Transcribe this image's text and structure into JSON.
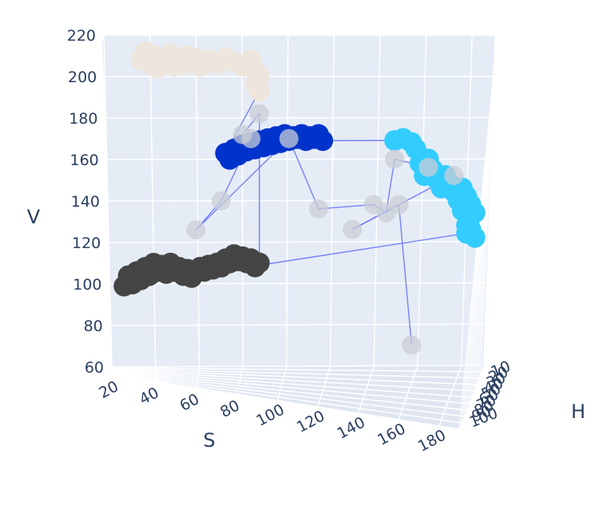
{
  "chart_data": {
    "type": "scatter3d",
    "axes": {
      "x": {
        "label": "S",
        "range": [
          20,
          190
        ],
        "ticks": [
          20,
          40,
          60,
          80,
          100,
          120,
          140,
          160,
          180
        ]
      },
      "y": {
        "label": "H",
        "range": [
          0,
          100
        ],
        "ticks": [
          10,
          20,
          30,
          40,
          50,
          60,
          70,
          80,
          90,
          100
        ]
      },
      "z": {
        "label": "V",
        "range": [
          60,
          220
        ],
        "ticks": [
          60,
          80,
          100,
          120,
          140,
          160,
          180,
          200,
          220
        ]
      }
    },
    "grid": true,
    "background": "#e5ecf6",
    "line_color": "#636efa",
    "clusters": [
      {
        "color": "#eee5dc",
        "points": [
          [
            30,
            208
          ],
          [
            32,
            212
          ],
          [
            34,
            206
          ],
          [
            36,
            210
          ],
          [
            38,
            204
          ],
          [
            40,
            209
          ],
          [
            42,
            207
          ],
          [
            44,
            211
          ],
          [
            46,
            205
          ],
          [
            48,
            208
          ],
          [
            50,
            206
          ],
          [
            52,
            210
          ],
          [
            54,
            207
          ],
          [
            56,
            209
          ],
          [
            58,
            205
          ],
          [
            62,
            208
          ],
          [
            66,
            206
          ],
          [
            70,
            209
          ],
          [
            74,
            207
          ],
          [
            78,
            205
          ],
          [
            82,
            208
          ],
          [
            84,
            203
          ],
          [
            86,
            200
          ],
          [
            84,
            196
          ],
          [
            86,
            193
          ]
        ]
      },
      {
        "color": "#0033cc",
        "points": [
          [
            70,
            163
          ],
          [
            72,
            160
          ],
          [
            74,
            165
          ],
          [
            76,
            162
          ],
          [
            78,
            167
          ],
          [
            80,
            164
          ],
          [
            82,
            168
          ],
          [
            84,
            165
          ],
          [
            86,
            169
          ],
          [
            88,
            166
          ],
          [
            90,
            170
          ],
          [
            92,
            167
          ],
          [
            94,
            171
          ],
          [
            96,
            168
          ],
          [
            98,
            172
          ],
          [
            100,
            169
          ],
          [
            102,
            171
          ],
          [
            104,
            170
          ],
          [
            106,
            172
          ],
          [
            108,
            169
          ],
          [
            110,
            171
          ],
          [
            112,
            170
          ],
          [
            114,
            172
          ],
          [
            116,
            169
          ]
        ]
      },
      {
        "color": "#33ccff",
        "points": [
          [
            150,
            169
          ],
          [
            154,
            170
          ],
          [
            158,
            168
          ],
          [
            160,
            165
          ],
          [
            162,
            158
          ],
          [
            164,
            152
          ],
          [
            166,
            160
          ],
          [
            168,
            155
          ],
          [
            170,
            150
          ],
          [
            172,
            146
          ],
          [
            174,
            152
          ],
          [
            176,
            148
          ],
          [
            178,
            144
          ],
          [
            180,
            140
          ],
          [
            182,
            146
          ],
          [
            184,
            142
          ],
          [
            186,
            138
          ],
          [
            182,
            135
          ],
          [
            186,
            132
          ],
          [
            184,
            128
          ],
          [
            188,
            134
          ],
          [
            186,
            126
          ],
          [
            188,
            122
          ],
          [
            184,
            124
          ]
        ]
      },
      {
        "color": "#444444",
        "points": [
          [
            22,
            99
          ],
          [
            24,
            104
          ],
          [
            26,
            100
          ],
          [
            28,
            106
          ],
          [
            30,
            102
          ],
          [
            32,
            108
          ],
          [
            34,
            104
          ],
          [
            36,
            110
          ],
          [
            38,
            106
          ],
          [
            40,
            109
          ],
          [
            42,
            105
          ],
          [
            44,
            110
          ],
          [
            46,
            106
          ],
          [
            48,
            108
          ],
          [
            50,
            104
          ],
          [
            52,
            107
          ],
          [
            54,
            103
          ],
          [
            56,
            106
          ],
          [
            58,
            108
          ],
          [
            60,
            106
          ],
          [
            62,
            109
          ],
          [
            64,
            107
          ],
          [
            66,
            110
          ],
          [
            68,
            108
          ],
          [
            70,
            112
          ],
          [
            72,
            110
          ],
          [
            74,
            114
          ],
          [
            76,
            111
          ],
          [
            78,
            113
          ],
          [
            80,
            110
          ],
          [
            82,
            112
          ],
          [
            84,
            108
          ],
          [
            86,
            110
          ]
        ]
      },
      {
        "color": "#c8cdd6",
        "points": [
          [
            86,
            182
          ],
          [
            78,
            172
          ],
          [
            82,
            170
          ],
          [
            68,
            140
          ],
          [
            56,
            126
          ],
          [
            100,
            170
          ],
          [
            114,
            136
          ],
          [
            140,
            138
          ],
          [
            146,
            134
          ],
          [
            150,
            160
          ],
          [
            166,
            156
          ],
          [
            178,
            152
          ],
          [
            130,
            126
          ],
          [
            152,
            138
          ],
          [
            158,
            70
          ]
        ]
      }
    ]
  }
}
